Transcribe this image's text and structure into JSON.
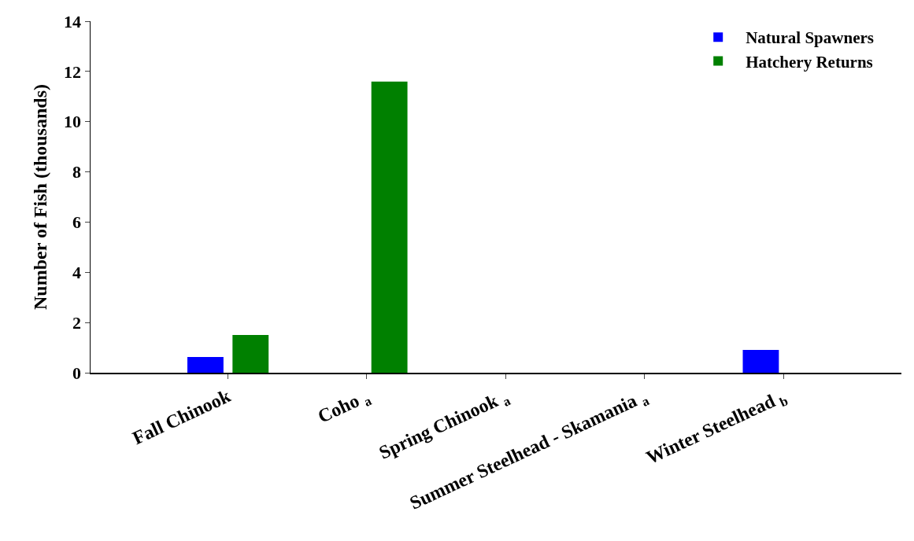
{
  "chart_data": {
    "type": "bar",
    "ylabel": "Number of Fish (thousands)",
    "categories": [
      "Fall Chinook",
      "Coho $_{a}$",
      "Spring Chinook $_{a}$",
      "Summer Steelhead - Skamania $_{a}$",
      "Winter Steelhead $_{b}$"
    ],
    "series": [
      {
        "name": "Natural Spawners",
        "color": "#0000ff",
        "values": [
          0.63,
          null,
          null,
          null,
          0.91
        ]
      },
      {
        "name": "Hatchery Returns",
        "color": "#008000",
        "values": [
          1.5,
          11.6,
          null,
          null,
          null
        ]
      }
    ],
    "ylim": [
      0,
      14
    ],
    "yticks": [
      0,
      2,
      4,
      6,
      8,
      10,
      12,
      14
    ],
    "grid": false,
    "legend": "top right"
  }
}
